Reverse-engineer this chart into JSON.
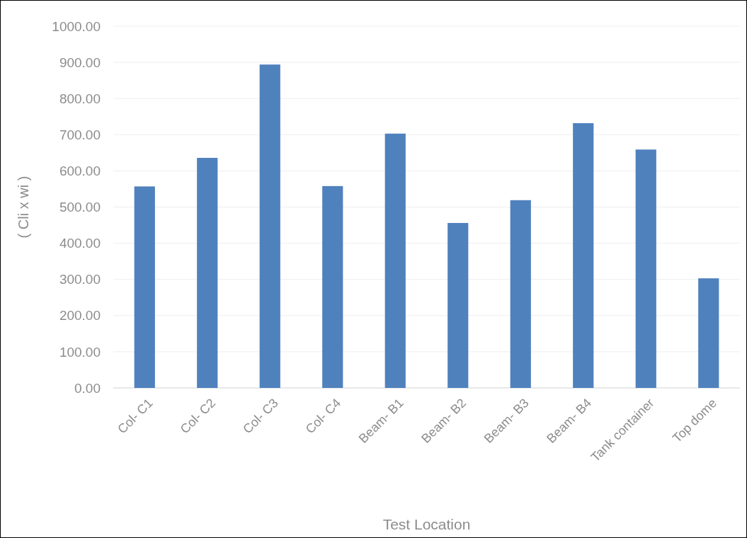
{
  "chart_data": {
    "type": "bar",
    "xlabel": "Test Location",
    "ylabel": "( Cli x wi )",
    "categories": [
      "Col- C1",
      "Col- C2",
      "Col- C3",
      "Col- C4",
      "Beam- B1",
      "Beam- B2",
      "Beam- B3",
      "Beam- B4",
      "Tank container",
      "Top dome"
    ],
    "values": [
      557,
      636,
      894,
      558,
      703,
      456,
      519,
      732,
      659,
      303
    ],
    "color": "#4f81bd",
    "ylim": [
      0,
      1000
    ],
    "yticks": [
      {
        "value": 0,
        "label": "0.00"
      },
      {
        "value": 100,
        "label": "100.00"
      },
      {
        "value": 200,
        "label": "200.00"
      },
      {
        "value": 300,
        "label": "300.00"
      },
      {
        "value": 400,
        "label": "400.00"
      },
      {
        "value": 500,
        "label": "500.00"
      },
      {
        "value": 600,
        "label": "600.00"
      },
      {
        "value": 700,
        "label": "700.00"
      },
      {
        "value": 800,
        "label": "800.00"
      },
      {
        "value": 900,
        "label": "900.00"
      },
      {
        "value": 1000,
        "label": "1000.00"
      }
    ],
    "grid": "y"
  }
}
